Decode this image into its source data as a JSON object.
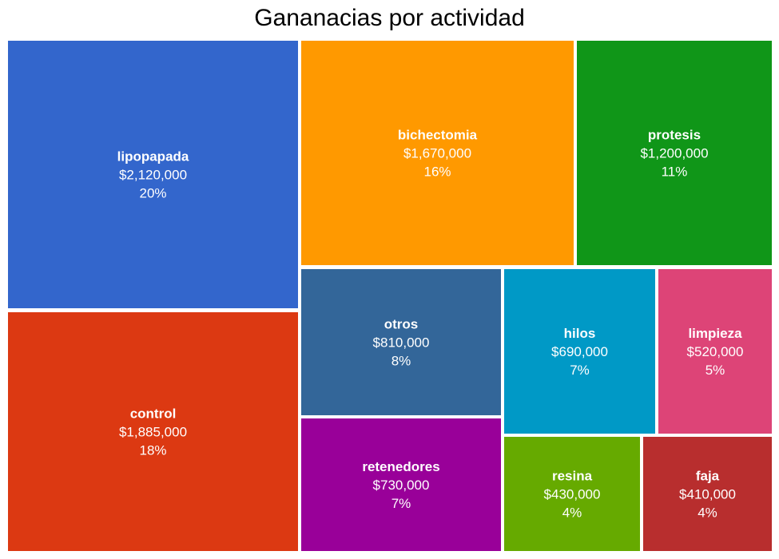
{
  "chart_data": {
    "type": "treemap",
    "title": "Gananacias por actividad",
    "items": [
      {
        "name": "lipopapada",
        "value": 2120000,
        "value_label": "$2,120,000",
        "percent_label": "20%",
        "color": "#3366cc"
      },
      {
        "name": "control",
        "value": 1885000,
        "value_label": "$1,885,000",
        "percent_label": "18%",
        "color": "#dc3912"
      },
      {
        "name": "bichectomia",
        "value": 1670000,
        "value_label": "$1,670,000",
        "percent_label": "16%",
        "color": "#ff9900"
      },
      {
        "name": "protesis",
        "value": 1200000,
        "value_label": "$1,200,000",
        "percent_label": "11%",
        "color": "#109618"
      },
      {
        "name": "otros",
        "value": 810000,
        "value_label": "$810,000",
        "percent_label": "8%",
        "color": "#336699"
      },
      {
        "name": "retenedores",
        "value": 730000,
        "value_label": "$730,000",
        "percent_label": "7%",
        "color": "#990099"
      },
      {
        "name": "hilos",
        "value": 690000,
        "value_label": "$690,000",
        "percent_label": "7%",
        "color": "#0099c6"
      },
      {
        "name": "limpieza",
        "value": 520000,
        "value_label": "$520,000",
        "percent_label": "5%",
        "color": "#dd4477"
      },
      {
        "name": "resina",
        "value": 430000,
        "value_label": "$430,000",
        "percent_label": "4%",
        "color": "#66aa00"
      },
      {
        "name": "faja",
        "value": 410000,
        "value_label": "$410,000",
        "percent_label": "4%",
        "color": "#b82e2e"
      }
    ]
  }
}
